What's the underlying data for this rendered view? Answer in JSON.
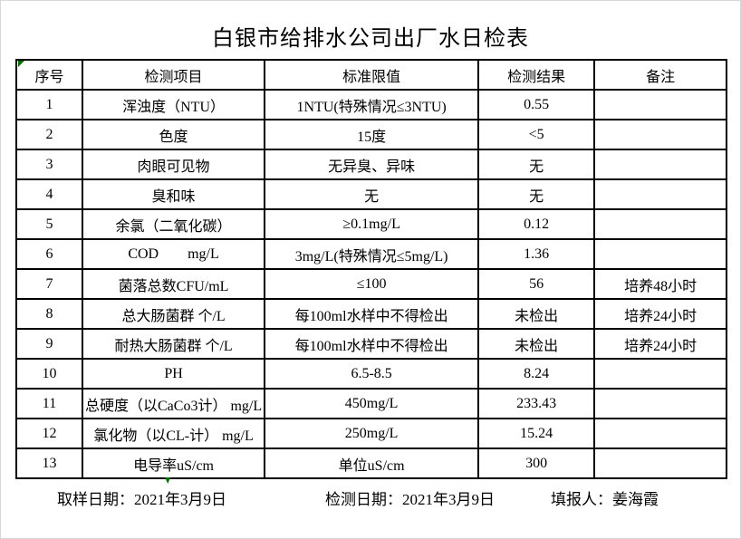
{
  "title": "白银市给排水公司出厂水日检表",
  "table": {
    "headers": [
      "序号",
      "检测项目",
      "标准限值",
      "检测结果",
      "备注"
    ],
    "rows": [
      [
        "1",
        "浑浊度（NTU）",
        "1NTU(特殊情况≤3NTU)",
        "0.55",
        ""
      ],
      [
        "2",
        "色度",
        "15度",
        "<5",
        ""
      ],
      [
        "3",
        "肉眼可见物",
        "无异臭、异味",
        "无",
        ""
      ],
      [
        "4",
        "臭和味",
        "无",
        "无",
        ""
      ],
      [
        "5",
        "余氯（二氧化碳）",
        "≥0.1mg/L",
        "0.12",
        ""
      ],
      [
        "6",
        "COD        mg/L",
        "3mg/L(特殊情况≤5mg/L)",
        "1.36",
        ""
      ],
      [
        "7",
        "菌落总数CFU/mL",
        "≤100",
        "56",
        "培养48小时"
      ],
      [
        "8",
        "总大肠菌群 个/L",
        "每100ml水样中不得检出",
        "未检出",
        "培养24小时"
      ],
      [
        "9",
        "耐热大肠菌群 个/L",
        "每100ml水样中不得检出",
        "未检出",
        "培养24小时"
      ],
      [
        "10",
        "PH",
        "6.5-8.5",
        "8.24",
        ""
      ],
      [
        "11",
        "总硬度（以CaCo3计） mg/L",
        "450mg/L",
        "233.43",
        ""
      ],
      [
        "12",
        "氯化物（以CL-计） mg/L",
        "250mg/L",
        "15.24",
        ""
      ],
      [
        "13",
        "电导率uS/cm",
        "单位uS/cm",
        "300",
        ""
      ]
    ]
  },
  "footer": {
    "sampling_date": "取样日期：2021年3月9日",
    "testing_date": "检测日期：2021年3月9日",
    "reporter": "填报人：姜海霞"
  },
  "colors": {
    "border": "#000000",
    "text": "#000000",
    "marker_green": "#007000",
    "background": "#ffffff"
  }
}
